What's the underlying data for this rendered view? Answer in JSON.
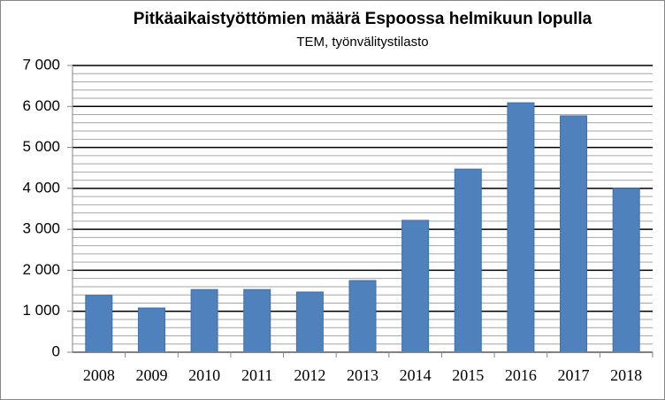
{
  "chart_data": {
    "type": "bar",
    "title": "Pitkäaikaistyöttömien määrä Espoossa helmikuun lopulla",
    "subtitle": "TEM, työnvälitystilasto",
    "categories": [
      "2008",
      "2009",
      "2010",
      "2011",
      "2012",
      "2013",
      "2014",
      "2015",
      "2016",
      "2017",
      "2018"
    ],
    "values": [
      1390,
      1080,
      1530,
      1530,
      1470,
      1750,
      3220,
      4470,
      6090,
      5770,
      4000
    ],
    "color": "#4f81bd",
    "ylim": [
      0,
      7000
    ],
    "yticks": [
      0,
      {
        "value": 1000,
        "label": "1 000"
      },
      {
        "value": 2000,
        "label": "2 000"
      },
      {
        "value": 3000,
        "label": "3 000"
      },
      {
        "value": 4000,
        "label": "4 000"
      },
      {
        "value": 5000,
        "label": "5 000"
      },
      {
        "value": 6000,
        "label": "6 000"
      },
      {
        "value": 7000,
        "label": "7 000"
      }
    ],
    "minor_yticks": [
      200,
      400,
      600,
      800,
      1200,
      1400,
      1600,
      1800,
      2200,
      2400,
      2600,
      2800,
      3200,
      3400,
      3600,
      3800,
      4200,
      4400,
      4600,
      4800,
      5200,
      5400,
      5600,
      5800,
      6200,
      6400,
      6600,
      6800
    ],
    "grid": true
  }
}
